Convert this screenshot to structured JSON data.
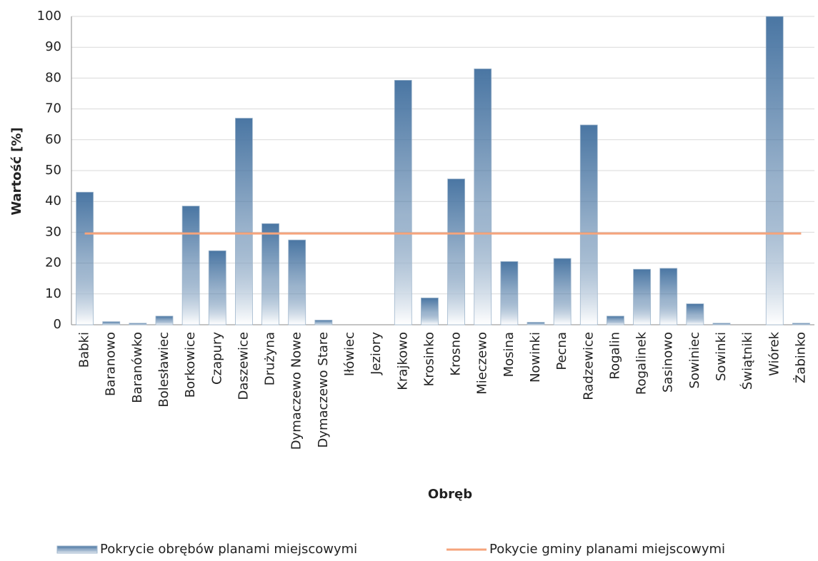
{
  "chart_data": {
    "type": "bar",
    "x_label": "Obręb",
    "y_label": "Wartość [%]",
    "categories": [
      "Babki",
      "Baranowo",
      "Baranówko",
      "Bolesławiec",
      "Borkowice",
      "Czapury",
      "Daszewice",
      "Drużyna",
      "Dymaczewo Nowe",
      "Dymaczewo Stare",
      "Iłówiec",
      "Jeziory",
      "Krajkowo",
      "Krosinko",
      "Krosno",
      "Mieczewo",
      "Mosina",
      "Nowinki",
      "Pecna",
      "Radzewice",
      "Rogalin",
      "Rogalinek",
      "Sasinowo",
      "Sowiniec",
      "Sowinki",
      "Świątniki",
      "Wiórek",
      "Żabinko"
    ],
    "series": [
      {
        "name": "Pokrycie obrębów planami miejscowymi",
        "type": "bar",
        "color": "#4a76a3",
        "values": [
          43,
          1,
          0.5,
          2.8,
          38.5,
          24,
          67,
          32.8,
          27.5,
          1.5,
          0,
          0,
          79.3,
          8.7,
          47.3,
          83,
          20.5,
          0.8,
          21.5,
          64.8,
          2.8,
          18,
          18.3,
          6.8,
          0.5,
          0,
          100,
          0.5
        ]
      },
      {
        "name": "Pokycie gminy planami miejscowymi",
        "type": "line",
        "color": "#f5a47c",
        "values": [
          29.6,
          29.6,
          29.6,
          29.6,
          29.6,
          29.6,
          29.6,
          29.6,
          29.6,
          29.6,
          29.6,
          29.6,
          29.6,
          29.6,
          29.6,
          29.6,
          29.6,
          29.6,
          29.6,
          29.6,
          29.6,
          29.6,
          29.6,
          29.6,
          29.6,
          29.6,
          29.6,
          29.6
        ]
      }
    ],
    "ylim": [
      0,
      100
    ],
    "yticks": [
      0,
      10,
      20,
      30,
      40,
      50,
      60,
      70,
      80,
      90,
      100
    ],
    "grid": true
  }
}
